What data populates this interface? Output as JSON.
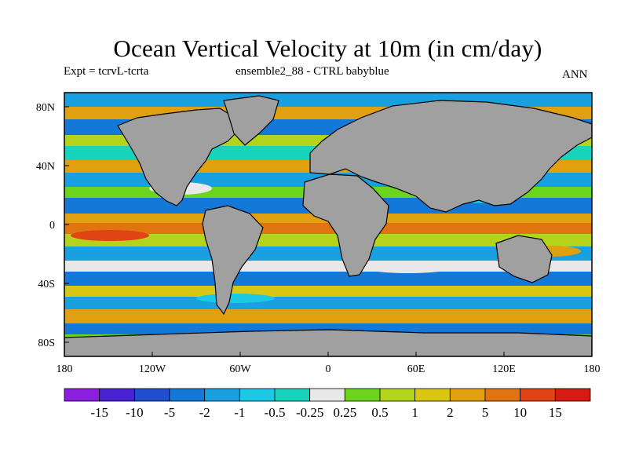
{
  "header": {
    "title": "Ocean Vertical Velocity at 10m (in cm/day)",
    "expt": "Expt = tcrvL-tcrta",
    "case": "ensemble2_88 - CTRL babyblue",
    "season": "ANN"
  },
  "map": {
    "lat_ticks": [
      "80N",
      "40N",
      "0",
      "40S",
      "80S"
    ],
    "lon_ticks": [
      "180",
      "120W",
      "60W",
      "0",
      "60E",
      "120E",
      "180"
    ],
    "land_color": "#a0a0a0"
  },
  "colorbar": {
    "labels": [
      "-15",
      "-10",
      "-5",
      "-2",
      "-1",
      "-0.5",
      "-0.25",
      "0.25",
      "0.5",
      "1",
      "2",
      "5",
      "10",
      "15"
    ],
    "colors": [
      "#8c1ee0",
      "#4a22d4",
      "#1f4ed0",
      "#1478d8",
      "#18a0e0",
      "#1cc8e4",
      "#18d4bc",
      "#e8e8e8",
      "#6cd41c",
      "#b4d41c",
      "#d8c814",
      "#e0a010",
      "#e07410",
      "#e04414",
      "#d41c14"
    ]
  }
}
